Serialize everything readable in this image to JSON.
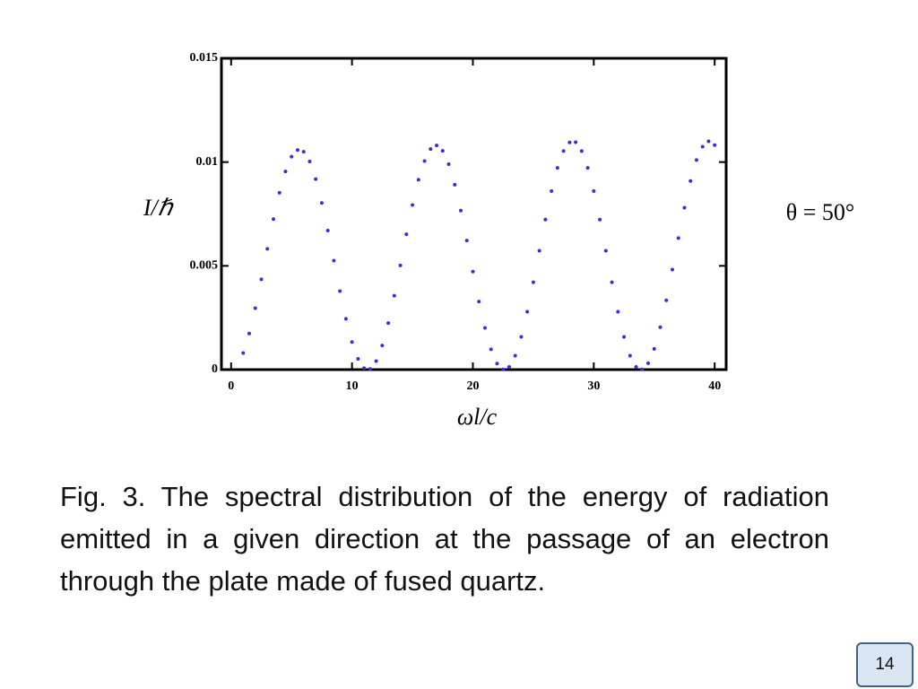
{
  "chart_data": {
    "type": "scatter",
    "y_label": "I/ℏ",
    "x_label": "ωl/c",
    "annotation": "θ = 50°",
    "color": "#3b2ed6",
    "xlim": [
      -0.8,
      40.95
    ],
    "ylim": [
      0,
      0.015
    ],
    "xticks": [
      0,
      10,
      20,
      30,
      40
    ],
    "yticks": [
      0,
      0.005,
      0.01,
      0.015
    ],
    "x": [
      1,
      1.5,
      2,
      2.5,
      3,
      3.5,
      4,
      4.5,
      5,
      5.5,
      6,
      6.5,
      7,
      7.5,
      8,
      8.5,
      9,
      9.5,
      10,
      10.5,
      11,
      11.5,
      12,
      12.5,
      13,
      13.5,
      14,
      14.5,
      15,
      15.5,
      16,
      16.5,
      17,
      17.5,
      18,
      18.5,
      19,
      19.5,
      20,
      20.5,
      21,
      21.5,
      22,
      22.5,
      23,
      23.5,
      24,
      24.5,
      25,
      25.5,
      26,
      26.5,
      27,
      27.5,
      28,
      28.5,
      29,
      29.5,
      30,
      30.5,
      31,
      31.5,
      32,
      32.5,
      33,
      33.5,
      34,
      34.5,
      35,
      35.5,
      36,
      36.5,
      37,
      37.5,
      38,
      38.5,
      39,
      39.5,
      40
    ],
    "values": [
      0.0008,
      0.00174,
      0.00296,
      0.00435,
      0.00582,
      0.00725,
      0.00852,
      0.00955,
      0.01026,
      0.01058,
      0.0105,
      0.01003,
      0.00918,
      0.00803,
      0.0067,
      0.00525,
      0.00378,
      0.00245,
      0.00133,
      0.00052,
      7e-05,
      3e-05,
      0.00041,
      0.00116,
      0.00224,
      0.00356,
      0.00502,
      0.00652,
      0.00793,
      0.00915,
      0.01005,
      0.01063,
      0.0108,
      0.01054,
      0.0099,
      0.00891,
      0.00766,
      0.00622,
      0.00472,
      0.00328,
      0.00201,
      0.00098,
      0.00029,
      1e-05,
      0.00013,
      0.00067,
      0.00158,
      0.00279,
      0.00421,
      0.00573,
      0.00723,
      0.0086,
      0.00972,
      0.01053,
      0.01095,
      0.01096,
      0.01053,
      0.00972,
      0.0086,
      0.00723,
      0.00573,
      0.00421,
      0.00279,
      0.00158,
      0.00067,
      0.00013,
      1e-05,
      0.00031,
      0.001,
      0.00204,
      0.00334,
      0.00482,
      0.00634,
      0.0078,
      0.00909,
      0.0101,
      0.01074,
      0.011,
      0.01082
    ]
  },
  "caption": "Fig. 3. The spectral distribution of the energy of radiation emitted in a given direction at the passage of an electron through the plate made of fused quartz.",
  "page_number": "14"
}
